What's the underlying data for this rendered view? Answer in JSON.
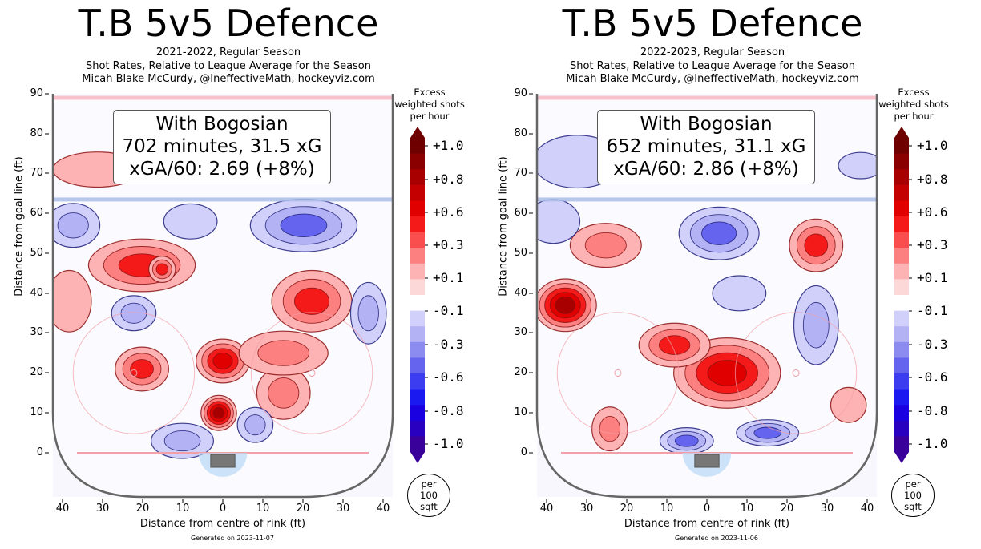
{
  "colorbar": {
    "title_lines": [
      "Excess",
      "weighted shots",
      "per hour"
    ],
    "tick_labels": [
      "+1.0",
      "+0.8",
      "+0.6",
      "+0.3",
      "+0.1",
      "-0.1",
      "-0.3",
      "-0.6",
      "-0.8",
      "-1.0"
    ],
    "unit_lines": [
      "per",
      "100",
      "sqft"
    ],
    "colors": [
      "#6e0000",
      "#8a0000",
      "#a80000",
      "#c40000",
      "#e00000",
      "#f41a1a",
      "#fa4d4d",
      "#fc8080",
      "#fdb3b3",
      "#fdd8d8",
      "#ffffff",
      "#d0d0fa",
      "#b2b2f5",
      "#8c8cf0",
      "#6464ee",
      "#3c3cf0",
      "#1a1af0",
      "#1a00e0",
      "#2a00c0",
      "#3a009a"
    ]
  },
  "axes": {
    "xlabel": "Distance from centre of rink (ft)",
    "ylabel": "Distance from goal line (ft)",
    "xticks": [
      "40",
      "30",
      "20",
      "10",
      "0",
      "10",
      "20",
      "30",
      "40"
    ],
    "yticks": [
      "90",
      "80",
      "70",
      "60",
      "50",
      "40",
      "30",
      "20",
      "10",
      "0"
    ]
  },
  "chart_data": [
    {
      "type": "heatmap",
      "title": "T.B 5v5 Defence",
      "subtitle_lines": [
        "2021-2022, Regular Season",
        "Shot Rates, Relative to League Average for the Season",
        "Micah Blake McCurdy, @IneffectiveMath, hockeyviz.com"
      ],
      "info_lines": [
        "With Bogosian",
        "702 minutes, 31.5 xG",
        "xGA/60: 2.69 (+8%)"
      ],
      "generated": "Generated on 2023-11-07",
      "xlim": [
        -42,
        42
      ],
      "ylim": [
        -10,
        90
      ],
      "hotspots": [
        {
          "x": -20,
          "y": 47,
          "v": 0.45,
          "rx": 12,
          "ry": 6
        },
        {
          "x": -15,
          "y": 46,
          "v": 0.55,
          "rx": 3,
          "ry": 3
        },
        {
          "x": 22,
          "y": 38,
          "v": 0.55,
          "rx": 9,
          "ry": 7
        },
        {
          "x": 0,
          "y": 23,
          "v": 0.7,
          "rx": 6,
          "ry": 5
        },
        {
          "x": -1,
          "y": 10,
          "v": 0.75,
          "rx": 4,
          "ry": 4
        },
        {
          "x": -20,
          "y": 21,
          "v": 0.5,
          "rx": 6,
          "ry": 5
        },
        {
          "x": 15,
          "y": 15,
          "v": 0.4,
          "rx": 6,
          "ry": 6
        },
        {
          "x": 15,
          "y": 25,
          "v": 0.3,
          "rx": 10,
          "ry": 5
        },
        {
          "x": -38,
          "y": 38,
          "v": 0.2,
          "rx": 5,
          "ry": 7
        },
        {
          "x": -31,
          "y": 71,
          "v": 0.2,
          "rx": 10,
          "ry": 4
        },
        {
          "x": 20,
          "y": 57,
          "v": -0.5,
          "rx": 12,
          "ry": 6
        },
        {
          "x": -37,
          "y": 57,
          "v": -0.35,
          "rx": 6,
          "ry": 5
        },
        {
          "x": -22,
          "y": 35,
          "v": -0.4,
          "rx": 5,
          "ry": 4
        },
        {
          "x": 36,
          "y": 35,
          "v": -0.35,
          "rx": 4,
          "ry": 7
        },
        {
          "x": -10,
          "y": 3,
          "v": -0.35,
          "rx": 7,
          "ry": 4
        },
        {
          "x": 8,
          "y": 7,
          "v": -0.3,
          "rx": 4,
          "ry": 4
        },
        {
          "x": -8,
          "y": 58,
          "v": -0.2,
          "rx": 6,
          "ry": 4
        }
      ]
    },
    {
      "type": "heatmap",
      "title": "T.B 5v5 Defence",
      "subtitle_lines": [
        "2022-2023, Regular Season",
        "Shot Rates, Relative to League Average for the Season",
        "Micah Blake McCurdy, @IneffectiveMath, hockeyviz.com"
      ],
      "info_lines": [
        "With Bogosian",
        "652 minutes, 31.1 xG",
        "xGA/60: 2.86 (+8%)"
      ],
      "generated": "Generated on 2023-11-06",
      "xlim": [
        -42,
        42
      ],
      "ylim": [
        -10,
        90
      ],
      "hotspots": [
        {
          "x": -35,
          "y": 37,
          "v": 0.8,
          "rx": 7,
          "ry": 6
        },
        {
          "x": 5,
          "y": 20,
          "v": 0.7,
          "rx": 12,
          "ry": 8
        },
        {
          "x": -8,
          "y": 27,
          "v": 0.45,
          "rx": 8,
          "ry": 5
        },
        {
          "x": 27,
          "y": 52,
          "v": 0.55,
          "rx": 6,
          "ry": 6
        },
        {
          "x": -24,
          "y": 6,
          "v": 0.35,
          "rx": 4,
          "ry": 5
        },
        {
          "x": -25,
          "y": 52,
          "v": 0.3,
          "rx": 8,
          "ry": 5
        },
        {
          "x": 35,
          "y": 12,
          "v": 0.15,
          "rx": 4,
          "ry": 4
        },
        {
          "x": 3,
          "y": 55,
          "v": -0.45,
          "rx": 9,
          "ry": 6
        },
        {
          "x": 27,
          "y": 32,
          "v": -0.4,
          "rx": 5,
          "ry": 9
        },
        {
          "x": -5,
          "y": 3,
          "v": -0.45,
          "rx": 6,
          "ry": 3
        },
        {
          "x": 15,
          "y": 5,
          "v": -0.45,
          "rx": 7,
          "ry": 3
        },
        {
          "x": -32,
          "y": 73,
          "v": -0.15,
          "rx": 10,
          "ry": 6
        },
        {
          "x": 38,
          "y": 72,
          "v": -0.15,
          "rx": 5,
          "ry": 3
        },
        {
          "x": -38,
          "y": 58,
          "v": -0.2,
          "rx": 6,
          "ry": 5
        },
        {
          "x": 8,
          "y": 40,
          "v": -0.2,
          "rx": 6,
          "ry": 4
        }
      ]
    }
  ]
}
